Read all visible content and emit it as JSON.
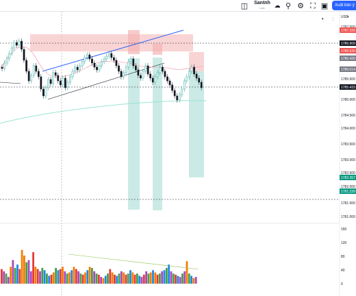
{
  "toolbar": {
    "layout_icon": "layout-icon",
    "title": "Santnh",
    "subtitle": "Lưu",
    "cloud_icon": "cloud-icon",
    "search_icon": "search-icon",
    "settings_icon": "gear-icon",
    "fullscreen_icon": "fullscreen-icon",
    "camera_icon": "camera-icon",
    "publish_label": "Xuất bản ý"
  },
  "price_axis": {
    "currency": "USD",
    "ticks": [
      "1787.500",
      "1786.500",
      "1786.000",
      "1785.500",
      "1785.000",
      "1784.500",
      "1784.000",
      "1783.500",
      "1783.000",
      "1782.500",
      "1782.000",
      "1781.500",
      "1781.000"
    ],
    "tags": [
      {
        "label": "1787.339",
        "color": "#ef5350"
      },
      {
        "label": "1786.909",
        "color": "#131722"
      },
      {
        "label": "1786.630",
        "color": "#ef5350"
      },
      {
        "label": "1786.420",
        "color": "#787b86"
      },
      {
        "label": "1786.014",
        "color": "#787b86"
      },
      {
        "label": "1785.433",
        "color": "#131722"
      },
      {
        "label": "1782.357",
        "color": "#089981"
      },
      {
        "label": "1781.239",
        "color": "#089981"
      }
    ]
  },
  "volume_axis": {
    "ticks": [
      "160",
      "120",
      "80",
      "40",
      "0"
    ]
  },
  "colors": {
    "up": "#26a69a",
    "down": "#131722",
    "trendline": "#2962ff",
    "ma": "#f7a6b5",
    "ma_slow": "#9be3d5"
  }
}
